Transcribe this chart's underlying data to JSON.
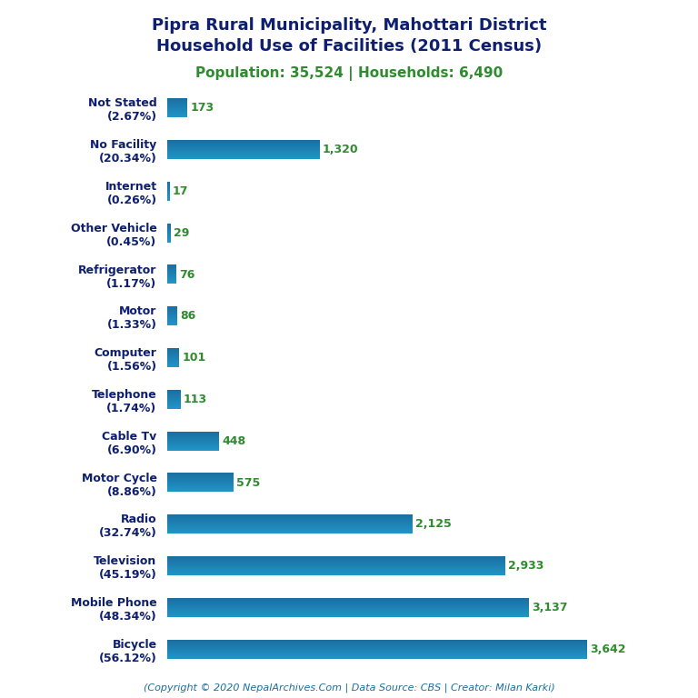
{
  "title_line1": "Pipra Rural Municipality, Mahottari District",
  "title_line2": "Household Use of Facilities (2011 Census)",
  "subtitle": "Population: 35,524 | Households: 6,490",
  "footer": "(Copyright © 2020 NepalArchives.Com | Data Source: CBS | Creator: Milan Karki)",
  "categories": [
    "Not Stated\n(2.67%)",
    "No Facility\n(20.34%)",
    "Internet\n(0.26%)",
    "Other Vehicle\n(0.45%)",
    "Refrigerator\n(1.17%)",
    "Motor\n(1.33%)",
    "Computer\n(1.56%)",
    "Telephone\n(1.74%)",
    "Cable Tv\n(6.90%)",
    "Motor Cycle\n(8.86%)",
    "Radio\n(32.74%)",
    "Television\n(45.19%)",
    "Mobile Phone\n(48.34%)",
    "Bicycle\n(56.12%)"
  ],
  "values": [
    173,
    1320,
    17,
    29,
    76,
    86,
    101,
    113,
    448,
    575,
    2125,
    2933,
    3137,
    3642
  ],
  "bar_color_light": "#2196c8",
  "bar_color_dark": "#1a6fa0",
  "title_color": "#0d1f6e",
  "subtitle_color": "#2e8b2e",
  "value_color": "#2e8b2e",
  "footer_color": "#1a6fa0",
  "label_color": "#0d1f6e",
  "background_color": "#ffffff",
  "xlim": [
    0,
    4000
  ],
  "bar_height": 0.45,
  "label_fontsize": 9,
  "value_fontsize": 9
}
